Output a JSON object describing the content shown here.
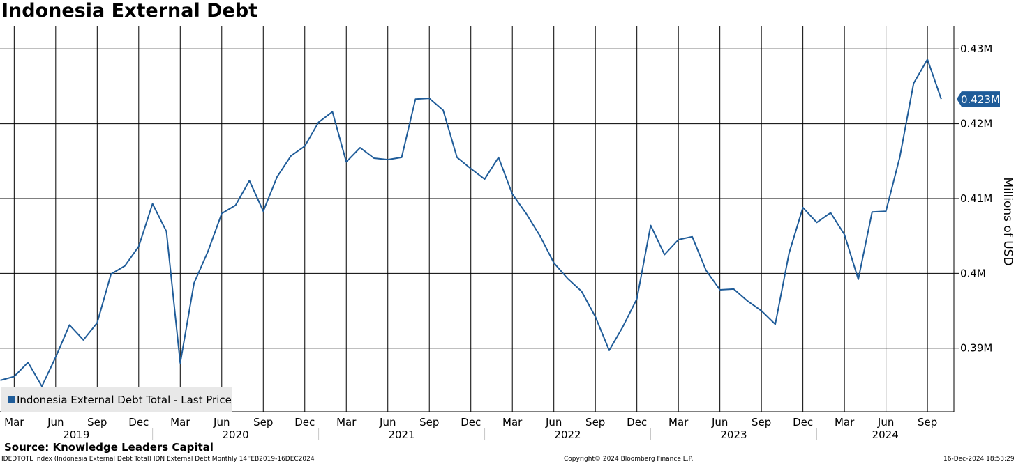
{
  "title": "Indonesia External Debt",
  "source": "Source: Knowledge Leaders Capital",
  "footer": {
    "left": "IDEDTOTL Index (Indonesia External Debt Total) IDN External Debt  Monthly 14FEB2019-16DEC2024",
    "center": "Copyright© 2024 Bloomberg Finance L.P.",
    "right": "16-Dec-2024 18:53:29"
  },
  "chart_data": {
    "type": "line",
    "ylabel": "Millions of USD",
    "ylim": [
      0.3815,
      0.433
    ],
    "yticks": [
      {
        "value": 0.39,
        "label": "0.39M"
      },
      {
        "value": 0.4,
        "label": "0.4M"
      },
      {
        "value": 0.41,
        "label": "0.41M"
      },
      {
        "value": 0.42,
        "label": "0.42M"
      },
      {
        "value": 0.43,
        "label": "0.43M"
      }
    ],
    "last_value": 0.4233,
    "last_label": "0.423M",
    "legend": "Indonesia External Debt Total - Last Price",
    "x_start": "2019-02",
    "month_labels": [
      {
        "month": "2019-03",
        "label": "Mar"
      },
      {
        "month": "2019-06",
        "label": "Jun"
      },
      {
        "month": "2019-09",
        "label": "Sep"
      },
      {
        "month": "2019-12",
        "label": "Dec"
      },
      {
        "month": "2020-03",
        "label": "Mar"
      },
      {
        "month": "2020-06",
        "label": "Jun"
      },
      {
        "month": "2020-09",
        "label": "Sep"
      },
      {
        "month": "2020-12",
        "label": "Dec"
      },
      {
        "month": "2021-03",
        "label": "Mar"
      },
      {
        "month": "2021-06",
        "label": "Jun"
      },
      {
        "month": "2021-09",
        "label": "Sep"
      },
      {
        "month": "2021-12",
        "label": "Dec"
      },
      {
        "month": "2022-03",
        "label": "Mar"
      },
      {
        "month": "2022-06",
        "label": "Jun"
      },
      {
        "month": "2022-09",
        "label": "Sep"
      },
      {
        "month": "2022-12",
        "label": "Dec"
      },
      {
        "month": "2023-03",
        "label": "Mar"
      },
      {
        "month": "2023-06",
        "label": "Jun"
      },
      {
        "month": "2023-09",
        "label": "Sep"
      },
      {
        "month": "2023-12",
        "label": "Dec"
      },
      {
        "month": "2024-03",
        "label": "Mar"
      },
      {
        "month": "2024-06",
        "label": "Jun"
      },
      {
        "month": "2024-09",
        "label": "Sep"
      }
    ],
    "years": [
      "2019",
      "2020",
      "2021",
      "2022",
      "2023",
      "2024"
    ],
    "series": [
      {
        "name": "Indonesia External Debt Total - Last Price",
        "color": "#1f5c99",
        "x": [
          "2019-02",
          "2019-03",
          "2019-04",
          "2019-05",
          "2019-06",
          "2019-07",
          "2019-08",
          "2019-09",
          "2019-10",
          "2019-11",
          "2019-12",
          "2020-01",
          "2020-02",
          "2020-03",
          "2020-04",
          "2020-05",
          "2020-06",
          "2020-07",
          "2020-08",
          "2020-09",
          "2020-10",
          "2020-11",
          "2020-12",
          "2021-01",
          "2021-02",
          "2021-03",
          "2021-04",
          "2021-05",
          "2021-06",
          "2021-07",
          "2021-08",
          "2021-09",
          "2021-10",
          "2021-11",
          "2021-12",
          "2022-01",
          "2022-02",
          "2022-03",
          "2022-04",
          "2022-05",
          "2022-06",
          "2022-07",
          "2022-08",
          "2022-09",
          "2022-10",
          "2022-11",
          "2022-12",
          "2023-01",
          "2023-02",
          "2023-03",
          "2023-04",
          "2023-05",
          "2023-06",
          "2023-07",
          "2023-08",
          "2023-09",
          "2023-10",
          "2023-11",
          "2023-12",
          "2024-01",
          "2024-02",
          "2024-03",
          "2024-04",
          "2024-05",
          "2024-06",
          "2024-07",
          "2024-08",
          "2024-09",
          "2024-10"
        ],
        "values": [
          0.3857,
          0.3862,
          0.3881,
          0.3849,
          0.3888,
          0.3931,
          0.3911,
          0.3934,
          0.3999,
          0.401,
          0.4036,
          0.4093,
          0.4056,
          0.388,
          0.3987,
          0.4029,
          0.408,
          0.4091,
          0.4124,
          0.4083,
          0.4129,
          0.4157,
          0.417,
          0.4202,
          0.4216,
          0.4149,
          0.4168,
          0.4154,
          0.4152,
          0.4155,
          0.4233,
          0.4234,
          0.4218,
          0.4155,
          0.414,
          0.4126,
          0.4155,
          0.4106,
          0.408,
          0.405,
          0.4014,
          0.3993,
          0.3976,
          0.3942,
          0.3897,
          0.3929,
          0.3966,
          0.4064,
          0.4025,
          0.4045,
          0.4049,
          0.4004,
          0.3978,
          0.3979,
          0.3963,
          0.395,
          0.3932,
          0.4027,
          0.4088,
          0.4068,
          0.4081,
          0.4052,
          0.3992,
          0.4082,
          0.4083,
          0.4155,
          0.4254,
          0.4286,
          0.4233
        ]
      }
    ]
  }
}
